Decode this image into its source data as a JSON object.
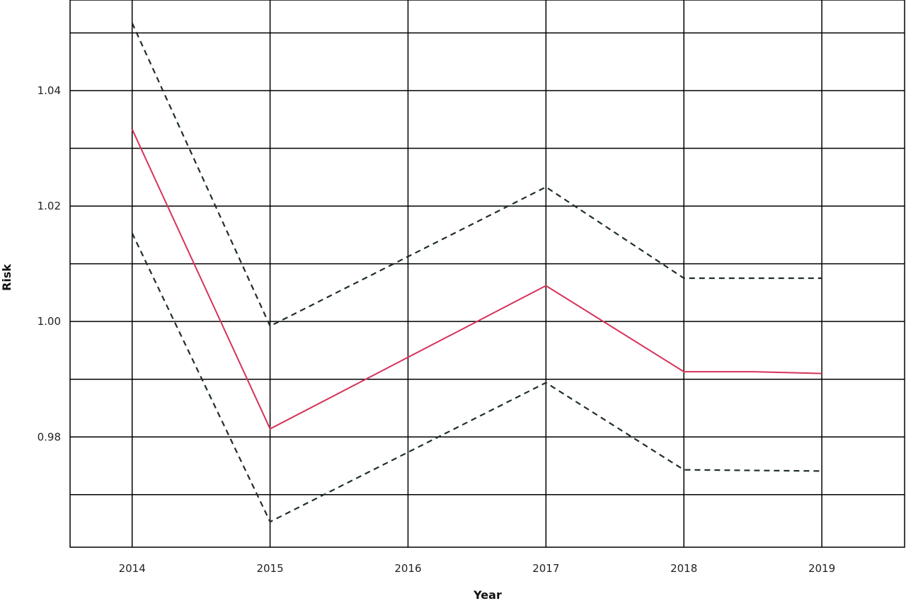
{
  "chart_data": {
    "type": "line",
    "title": "",
    "xlabel": "Year",
    "ylabel": "Risk",
    "xlim": [
      2013.55,
      2019.6
    ],
    "ylim": [
      0.9609,
      1.0557
    ],
    "x_ticks": [
      2014,
      2015,
      2016,
      2017,
      2018,
      2019
    ],
    "x_tick_labels": [
      "2014",
      "2015",
      "2016",
      "2017",
      "2018",
      "2019"
    ],
    "y_ticks": [
      0.98,
      1.0,
      1.02,
      1.04
    ],
    "y_tick_labels": [
      "0.98",
      "1.00",
      "1.02",
      "1.04"
    ],
    "y_gridlines": [
      0.97,
      0.98,
      0.99,
      1.0,
      1.01,
      1.02,
      1.03,
      1.04,
      1.05
    ],
    "grid": true,
    "legend": "none",
    "series": [
      {
        "key": "estimate",
        "style": "solid",
        "color": "#d6335a",
        "x": [
          2014,
          2015,
          2017,
          2018,
          2018.5,
          2019
        ],
        "y": [
          1.0333,
          0.9814,
          1.0062,
          0.9913,
          0.9913,
          0.991
        ]
      },
      {
        "key": "upper",
        "style": "dashed",
        "color": "#1f2f2a",
        "x": [
          2014,
          2015,
          2017,
          2018,
          2019
        ],
        "y": [
          1.0517,
          0.9992,
          1.0233,
          1.0075,
          1.0075
        ]
      },
      {
        "key": "lower",
        "style": "dashed",
        "color": "#1f2f2a",
        "x": [
          2014,
          2015,
          2017,
          2018,
          2019
        ],
        "y": [
          1.0153,
          0.9653,
          0.9894,
          0.9743,
          0.9741
        ]
      }
    ]
  }
}
